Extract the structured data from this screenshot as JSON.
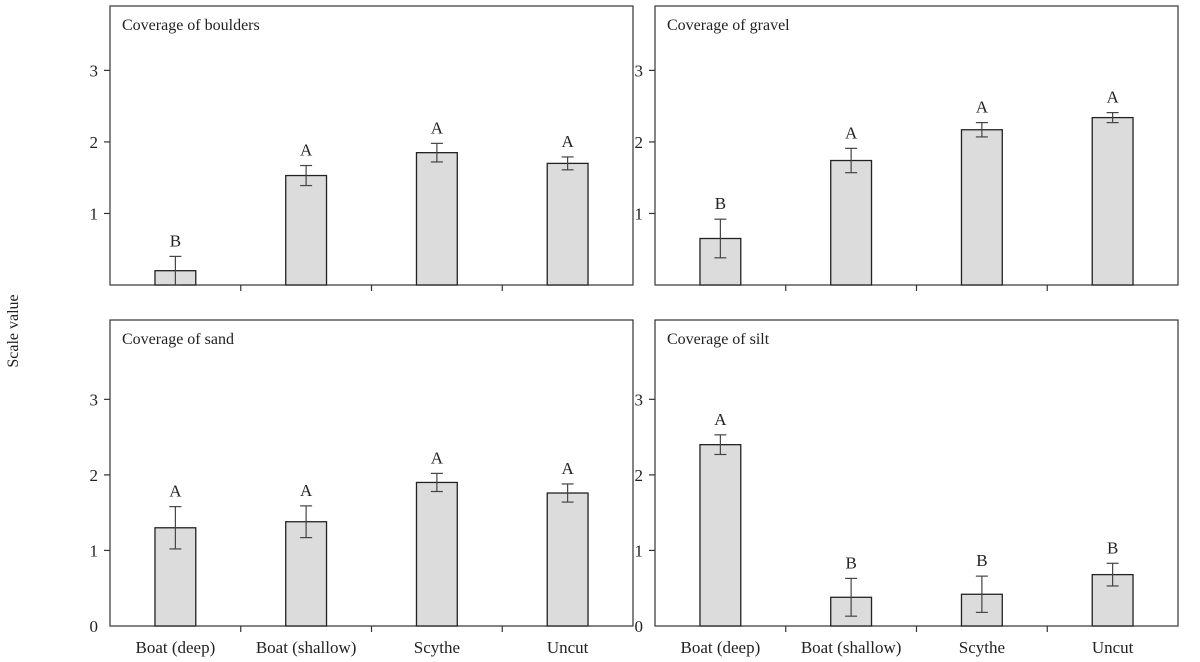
{
  "y_axis_label": "Scale value",
  "chart_data": [
    {
      "type": "bar",
      "title": "Coverage of boulders",
      "categories": [
        "Boat (deep)",
        "Boat (shallow)",
        "Scythe",
        "Uncut"
      ],
      "values": [
        0.2,
        1.53,
        1.85,
        1.7
      ],
      "errors": [
        0.2,
        0.14,
        0.13,
        0.09
      ],
      "letters": [
        "B",
        "A",
        "A",
        "A"
      ],
      "ylim": [
        0,
        3.9
      ],
      "yticks": [
        1,
        2,
        3
      ],
      "show_xlabels": false,
      "show_zero": false
    },
    {
      "type": "bar",
      "title": "Coverage of gravel",
      "categories": [
        "Boat (deep)",
        "Boat (shallow)",
        "Scythe",
        "Uncut"
      ],
      "values": [
        0.65,
        1.74,
        2.17,
        2.34
      ],
      "errors": [
        0.27,
        0.17,
        0.1,
        0.07
      ],
      "letters": [
        "B",
        "A",
        "A",
        "A"
      ],
      "ylim": [
        0,
        3.9
      ],
      "yticks": [
        1,
        2,
        3
      ],
      "show_xlabels": false,
      "show_zero": false
    },
    {
      "type": "bar",
      "title": "Coverage of sand",
      "categories": [
        "Boat (deep)",
        "Boat (shallow)",
        "Scythe",
        "Uncut"
      ],
      "values": [
        1.3,
        1.38,
        1.9,
        1.76
      ],
      "errors": [
        0.28,
        0.21,
        0.12,
        0.12
      ],
      "letters": [
        "A",
        "A",
        "A",
        "A"
      ],
      "ylim": [
        0,
        4.05
      ],
      "yticks": [
        0,
        1,
        2,
        3
      ],
      "show_xlabels": true,
      "show_zero": true
    },
    {
      "type": "bar",
      "title": "Coverage of silt",
      "categories": [
        "Boat (deep)",
        "Boat (shallow)",
        "Scythe",
        "Uncut"
      ],
      "values": [
        2.4,
        0.38,
        0.42,
        0.68
      ],
      "errors": [
        0.13,
        0.25,
        0.24,
        0.15
      ],
      "letters": [
        "A",
        "B",
        "B",
        "B"
      ],
      "ylim": [
        0,
        4.05
      ],
      "yticks": [
        0,
        1,
        2,
        3
      ],
      "show_xlabels": true,
      "show_zero": true
    }
  ]
}
